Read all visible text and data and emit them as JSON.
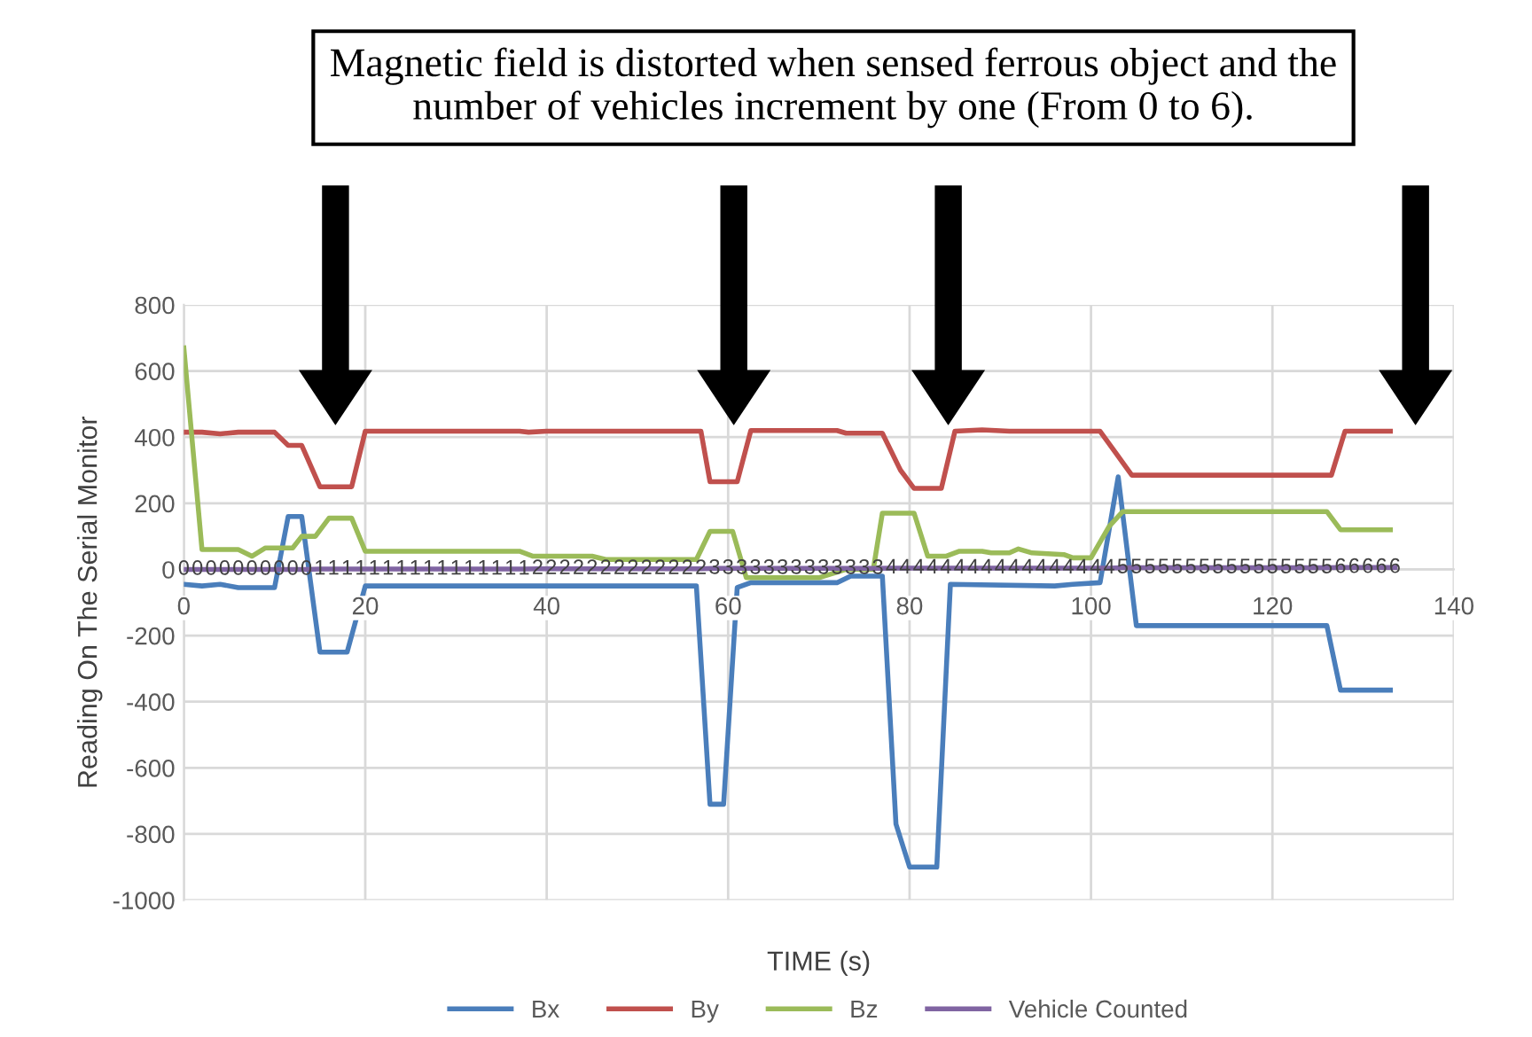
{
  "chart_data": {
    "type": "line",
    "xlabel": "TIME (s)",
    "ylabel": "Reading On The Serial Monitor",
    "annotations": [
      "Magnetic field is distorted when sensed ferrous object and the number of vehicles increment by one (From 0 to 6)."
    ],
    "xlim": [
      0,
      140
    ],
    "xticks": [
      0,
      20,
      40,
      60,
      80,
      100,
      120,
      140
    ],
    "ylim": [
      -1000,
      800
    ],
    "yticks": [
      -1000,
      -800,
      -600,
      -400,
      -200,
      0,
      200,
      400,
      600,
      800
    ],
    "grid": true,
    "legend": "bottom",
    "marker": "none",
    "line_style": "solid",
    "series": [
      {
        "name": "Bx",
        "color": "#4a7ebb",
        "x": [
          0,
          2,
          4,
          6,
          10,
          11.5,
          13,
          15,
          18,
          20,
          56.5,
          58,
          59.5,
          61,
          62.5,
          72,
          73.5,
          77,
          78.5,
          80,
          83,
          84.5,
          96,
          98,
          101,
          103,
          105,
          126,
          127.5,
          133
        ],
        "values": [
          -45,
          -50,
          -45,
          -55,
          -55,
          160,
          160,
          -250,
          -250,
          -50,
          -50,
          -710,
          -710,
          -55,
          -40,
          -40,
          -20,
          -20,
          -770,
          -900,
          -900,
          -45,
          -50,
          -45,
          -40,
          280,
          -170,
          -170,
          -365,
          -365
        ]
      },
      {
        "name": "By",
        "color": "#c0504d",
        "x": [
          0,
          2,
          4,
          6,
          10,
          11.5,
          13,
          15,
          18.5,
          20,
          37,
          38,
          40,
          57,
          58,
          61,
          62.5,
          72,
          73,
          77,
          79,
          80.5,
          83.5,
          85,
          88,
          91,
          101,
          104.5,
          126.5,
          128,
          133
        ],
        "values": [
          415,
          415,
          410,
          415,
          415,
          375,
          375,
          250,
          250,
          418,
          418,
          415,
          418,
          418,
          265,
          265,
          420,
          420,
          412,
          412,
          300,
          245,
          245,
          418,
          422,
          418,
          418,
          285,
          285,
          418,
          418
        ]
      },
      {
        "name": "Bz",
        "color": "#9bbb59",
        "x": [
          0,
          2,
          6,
          7.5,
          9,
          12,
          13,
          14.5,
          16,
          18.5,
          20,
          37,
          38.5,
          45,
          46.5,
          56.5,
          58,
          60.5,
          62,
          70,
          73,
          76,
          77,
          80.5,
          82,
          84,
          85.5,
          88,
          89,
          91,
          92,
          93.5,
          97,
          98,
          100,
          102,
          103.5,
          126,
          127.5,
          133
        ],
        "values": [
          670,
          60,
          60,
          40,
          65,
          65,
          100,
          100,
          155,
          155,
          55,
          55,
          40,
          40,
          30,
          30,
          115,
          115,
          -25,
          -25,
          0,
          0,
          170,
          170,
          40,
          40,
          55,
          55,
          50,
          50,
          62,
          50,
          45,
          35,
          35,
          130,
          175,
          175,
          120,
          120
        ]
      },
      {
        "name": "Vehicle Counted",
        "color": "#8064a2",
        "data_labels": true,
        "x": [
          0,
          1.5,
          3,
          4.5,
          6,
          7.5,
          9,
          10.5,
          12,
          13.5,
          15,
          16.5,
          18,
          19.5,
          21,
          22.5,
          24,
          25.5,
          27,
          28.5,
          30,
          31.5,
          33,
          34.5,
          36,
          37.5,
          39,
          40.5,
          42,
          43.5,
          45,
          46.5,
          48,
          49.5,
          51,
          52.5,
          54,
          55.5,
          57,
          58.5,
          60,
          61.5,
          63,
          64.5,
          66,
          67.5,
          69,
          70.5,
          72,
          73.5,
          75,
          76.5,
          78,
          79.5,
          81,
          82.5,
          84,
          85.5,
          87,
          88.5,
          90,
          91.5,
          93,
          94.5,
          96,
          97.5,
          99,
          100.5,
          102,
          103.5,
          105,
          106.5,
          108,
          109.5,
          111,
          112.5,
          114,
          115.5,
          117,
          118.5,
          120,
          121.5,
          123,
          124.5,
          126,
          127.5,
          129,
          130.5,
          132,
          133.5
        ],
        "values": [
          0,
          0,
          0,
          0,
          0,
          0,
          0,
          0,
          0,
          0,
          1,
          1,
          1,
          1,
          1,
          1,
          1,
          1,
          1,
          1,
          1,
          1,
          1,
          1,
          1,
          1,
          2,
          2,
          2,
          2,
          2,
          2,
          2,
          2,
          2,
          2,
          2,
          2,
          2,
          3,
          3,
          3,
          3,
          3,
          3,
          3,
          3,
          3,
          3,
          3,
          3,
          3,
          4,
          4,
          4,
          4,
          4,
          4,
          4,
          4,
          4,
          4,
          4,
          4,
          4,
          4,
          4,
          4,
          4,
          5,
          5,
          5,
          5,
          5,
          5,
          5,
          5,
          5,
          5,
          5,
          5,
          5,
          5,
          5,
          5,
          6,
          6,
          6,
          6,
          6
        ]
      }
    ]
  }
}
